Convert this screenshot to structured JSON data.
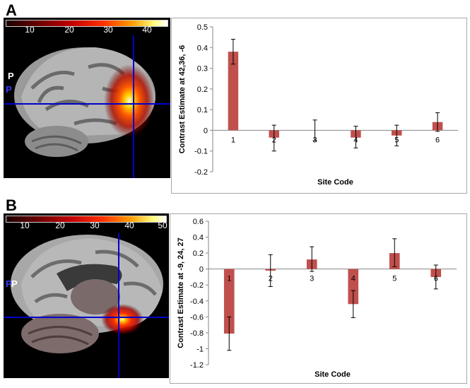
{
  "panels": [
    {
      "letter": "A",
      "colorbar_ticks": [
        "10",
        "20",
        "30",
        "40"
      ],
      "orientation_labels": [
        "P",
        "P"
      ]
    },
    {
      "letter": "B",
      "colorbar_ticks": [
        "10",
        "20",
        "30",
        "40",
        "50"
      ],
      "orientation_labels": [
        "P",
        "P"
      ]
    }
  ],
  "colors": {
    "bar": "#c0504d",
    "crosshair": "#0000cc",
    "axis": "#868686"
  },
  "chart_data": [
    {
      "type": "bar",
      "title": "",
      "xlabel": "Site Code",
      "ylabel": "Contrast Estimate at 42,36, -6",
      "categories": [
        "1",
        "2",
        "3",
        "4",
        "5",
        "6"
      ],
      "values": [
        0.38,
        -0.035,
        0.0,
        -0.035,
        -0.025,
        0.04
      ],
      "error_low": [
        0.06,
        0.065,
        0.05,
        0.05,
        0.05,
        0.045
      ],
      "error_high": [
        0.06,
        0.06,
        0.05,
        0.055,
        0.05,
        0.045
      ],
      "ylim": [
        -0.2,
        0.5
      ],
      "yticks": [
        "0.5",
        "0.4",
        "0.3",
        "0.2",
        "0.1",
        "0",
        "-0.1",
        "-0.2"
      ],
      "grid": false,
      "legend": "none"
    },
    {
      "type": "bar",
      "title": "",
      "xlabel": "Site Code",
      "ylabel": "Contrast Estimate at -9, 24, 27",
      "categories": [
        "1",
        "2",
        "3",
        "4",
        "5",
        "6"
      ],
      "values": [
        -0.81,
        -0.02,
        0.12,
        -0.44,
        0.2,
        -0.1
      ],
      "error_low": [
        0.21,
        0.2,
        0.15,
        0.17,
        0.17,
        0.15
      ],
      "error_high": [
        0.21,
        0.2,
        0.16,
        0.17,
        0.18,
        0.15
      ],
      "ylim": [
        -1.2,
        0.6
      ],
      "yticks": [
        "0.6",
        "0.4",
        "0.2",
        "0",
        "-0.2",
        "-0.4",
        "-0.6",
        "-0.8",
        "-1",
        "-1.2"
      ],
      "grid": false,
      "legend": "none"
    }
  ]
}
